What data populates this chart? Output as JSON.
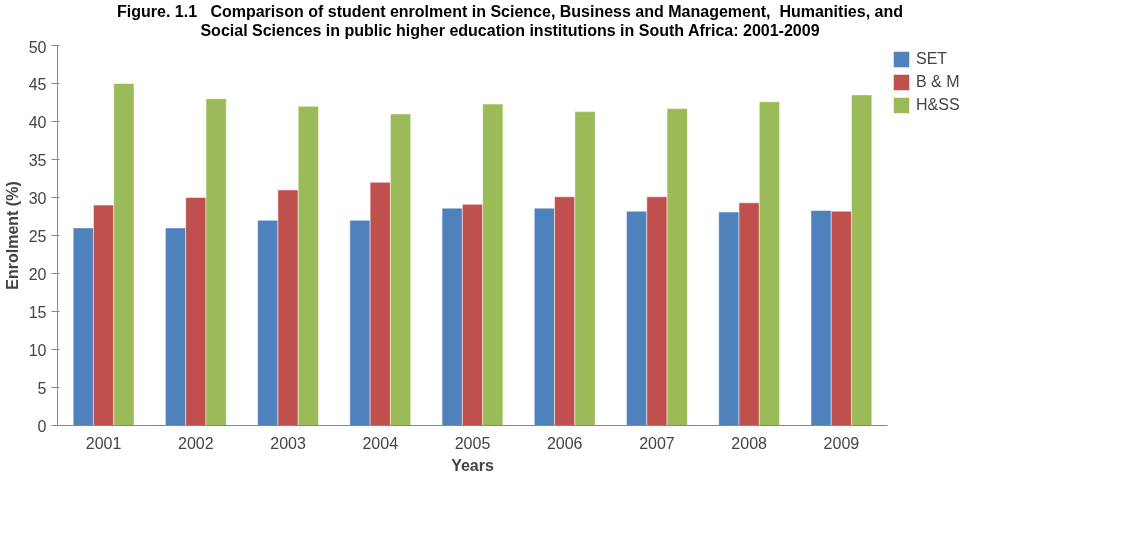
{
  "chart_data": {
    "type": "bar",
    "title": "Figure. 1.1   Comparison of student enrolment in Science, Business and Management,  Humanities, and Social Sciences in public higher education institutions in South Africa: 2001-2009",
    "xlabel": "Years",
    "ylabel": "Enrolment (%)",
    "categories": [
      "2001",
      "2002",
      "2003",
      "2004",
      "2005",
      "2006",
      "2007",
      "2008",
      "2009"
    ],
    "series": [
      {
        "name": "SET",
        "color": "#4f81bd",
        "values": [
          26,
          26,
          27,
          27,
          28.6,
          28.6,
          28.2,
          28.1,
          28.3
        ]
      },
      {
        "name": "B & M",
        "color": "#c0504d",
        "values": [
          29,
          30,
          31,
          32,
          29.1,
          30.1,
          30.1,
          29.3,
          28.2
        ]
      },
      {
        "name": "H&SS",
        "color": "#9bbb59",
        "values": [
          45,
          43,
          42,
          41,
          42.3,
          41.3,
          41.7,
          42.6,
          43.5
        ]
      }
    ],
    "ylim": [
      0,
      50
    ],
    "yticks": [
      0,
      5,
      10,
      15,
      20,
      25,
      30,
      35,
      40,
      45,
      50
    ],
    "grid": false,
    "legend": "top right"
  }
}
